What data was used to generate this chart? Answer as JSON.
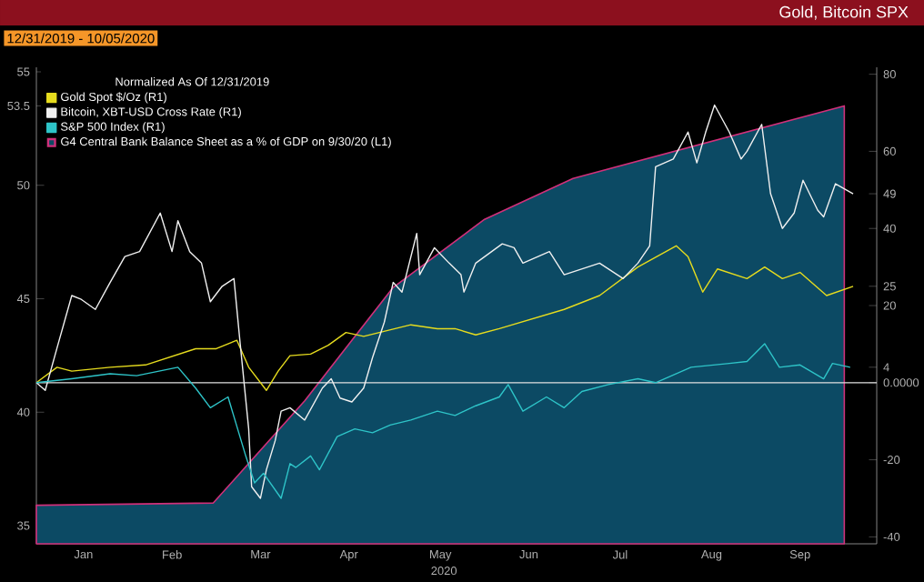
{
  "chart_data": {
    "type": "line",
    "title": "Gold, Bitcoin SPX",
    "subtitle": "12/31/2019 - 10/05/2020",
    "legend_title": "Normalized As Of 12/31/2019",
    "legend": "top left",
    "xlim": [
      "2019-12-31",
      "2020-10-11"
    ],
    "xticks": [
      {
        "value": "2020-01-16",
        "label": "Jan"
      },
      {
        "value": "2020-02-15",
        "label": "Feb"
      },
      {
        "value": "2020-03-16",
        "label": "Mar"
      },
      {
        "value": "2020-04-15",
        "label": "Apr"
      },
      {
        "value": "2020-05-16",
        "label": "May"
      },
      {
        "value": "2020-06-15",
        "label": "Jun"
      },
      {
        "value": "2020-07-16",
        "label": "Jul"
      },
      {
        "value": "2020-08-16",
        "label": "Aug"
      },
      {
        "value": "2020-09-15",
        "label": "Sep"
      }
    ],
    "ylim": [
      34.2,
      55.2
    ],
    "yticks": [
      35,
      40,
      45,
      50,
      53.5,
      55
    ],
    "y2lim": [
      -41.8,
      81.8
    ],
    "y2ticks": [
      -40,
      -20,
      {
        "value": 0,
        "label": "0.0000"
      },
      4,
      20,
      25,
      40,
      49,
      60,
      80
    ],
    "ref_lines": [
      {
        "axis": "y2",
        "value": 0,
        "color": "#e0e0e0"
      }
    ],
    "annotations": [
      "2020"
    ],
    "series": [
      {
        "name": "Gold Spot  $/Oz  (R1)",
        "axis": "y2",
        "color": "#e6dc1e",
        "x": [
          "2019-12-31",
          "2020-01-07",
          "2020-01-12",
          "2020-01-25",
          "2020-02-06",
          "2020-02-23",
          "2020-03-01",
          "2020-03-08",
          "2020-03-12",
          "2020-03-18",
          "2020-03-22",
          "2020-03-26",
          "2020-04-02",
          "2020-04-08",
          "2020-04-14",
          "2020-04-20",
          "2020-05-06",
          "2020-05-15",
          "2020-05-21",
          "2020-05-28",
          "2020-06-05",
          "2020-06-27",
          "2020-07-09",
          "2020-07-22",
          "2020-08-04",
          "2020-08-08",
          "2020-08-13",
          "2020-08-18",
          "2020-08-28",
          "2020-09-03",
          "2020-09-09",
          "2020-09-15",
          "2020-09-24",
          "2020-10-03"
        ],
        "values": [
          0,
          4,
          3,
          4,
          4.6,
          8.8,
          8.8,
          11,
          4,
          -2,
          3,
          7,
          7.4,
          9.7,
          13,
          12,
          15,
          14,
          14,
          12.4,
          14,
          19,
          22.6,
          30,
          35.5,
          32.7,
          23.5,
          29.5,
          27,
          30,
          27,
          28.6,
          22.6,
          25
        ]
      },
      {
        "name": "Bitcoin, XBT-USD Cross Rate  (R1)",
        "axis": "y2",
        "color": "#f0f0f0",
        "x": [
          "2019-12-31",
          "2020-01-03",
          "2020-01-07",
          "2020-01-12",
          "2020-01-15",
          "2020-01-20",
          "2020-01-25",
          "2020-01-30",
          "2020-02-04",
          "2020-02-11",
          "2020-02-15",
          "2020-02-17",
          "2020-02-21",
          "2020-02-25",
          "2020-02-28",
          "2020-03-03",
          "2020-03-07",
          "2020-03-09",
          "2020-03-12",
          "2020-03-13",
          "2020-03-16",
          "2020-03-18",
          "2020-03-21",
          "2020-03-23",
          "2020-03-26",
          "2020-03-31",
          "2020-04-06",
          "2020-04-09",
          "2020-04-12",
          "2020-04-16",
          "2020-04-20",
          "2020-04-23",
          "2020-04-27",
          "2020-04-30",
          "2020-05-03",
          "2020-05-08",
          "2020-05-09",
          "2020-05-14",
          "2020-05-19",
          "2020-05-23",
          "2020-05-24",
          "2020-05-28",
          "2020-06-06",
          "2020-06-10",
          "2020-06-13",
          "2020-06-22",
          "2020-06-27",
          "2020-07-09",
          "2020-07-17",
          "2020-07-22",
          "2020-07-26",
          "2020-07-28",
          "2020-08-03",
          "2020-08-08",
          "2020-08-11",
          "2020-08-14",
          "2020-08-17",
          "2020-08-22",
          "2020-08-26",
          "2020-08-28",
          "2020-09-02",
          "2020-09-05",
          "2020-09-09",
          "2020-09-13",
          "2020-09-16",
          "2020-09-21",
          "2020-09-23",
          "2020-09-27",
          "2020-10-03"
        ],
        "values": [
          0,
          -2,
          9,
          22.6,
          21.7,
          19,
          26,
          32.7,
          34,
          44,
          34,
          42,
          34,
          31,
          21,
          25,
          27,
          11,
          -12,
          -27,
          -30,
          -22.6,
          -15,
          -7.4,
          -6.5,
          -9.7,
          -1.4,
          1,
          -4,
          -5,
          -1.4,
          6.5,
          15.7,
          26,
          23.5,
          38.7,
          28,
          35,
          31,
          28,
          23.5,
          31,
          36,
          35,
          31,
          34,
          28,
          31,
          27,
          31,
          35.5,
          56,
          58,
          65,
          57,
          65,
          72,
          65,
          58,
          60,
          67,
          49,
          40,
          44,
          52.5,
          44.7,
          43,
          51.6,
          49
        ]
      },
      {
        "name": "S&P 500 Index (R1)",
        "axis": "y2",
        "color": "#2ec4c8",
        "x": [
          "2019-12-31",
          "2020-01-12",
          "2020-01-25",
          "2020-02-03",
          "2020-02-17",
          "2020-02-23",
          "2020-02-28",
          "2020-03-05",
          "2020-03-11",
          "2020-03-14",
          "2020-03-17",
          "2020-03-23",
          "2020-03-26",
          "2020-03-28",
          "2020-04-02",
          "2020-04-05",
          "2020-04-11",
          "2020-04-17",
          "2020-04-23",
          "2020-04-29",
          "2020-05-06",
          "2020-05-15",
          "2020-05-21",
          "2020-05-28",
          "2020-06-05",
          "2020-06-08",
          "2020-06-13",
          "2020-06-21",
          "2020-06-27",
          "2020-07-03",
          "2020-07-12",
          "2020-07-22",
          "2020-07-28",
          "2020-08-09",
          "2020-08-22",
          "2020-08-28",
          "2020-09-03",
          "2020-09-08",
          "2020-09-15",
          "2020-09-23",
          "2020-09-26",
          "2020-10-02"
        ],
        "values": [
          0,
          1,
          2.3,
          1.8,
          4,
          -1.4,
          -6.5,
          -3.7,
          -19,
          -26,
          -23.5,
          -30,
          -21,
          -22,
          -19,
          -22.6,
          -14,
          -12,
          -13,
          -11,
          -9.7,
          -7.4,
          -8.5,
          -6,
          -3.7,
          -0.5,
          -7.4,
          -3.7,
          -6.5,
          -2.3,
          -0.5,
          1,
          0,
          4,
          5,
          5.5,
          10.1,
          4,
          4.6,
          1,
          5,
          4
        ]
      },
      {
        "name": "G4 Central Bank Balance Sheet as a % of GDP  on 9/30/20 (L1)",
        "type": "area",
        "axis": "y",
        "color": "#d0307a",
        "x": [
          "2019-12-31",
          "2020-02-29",
          "2020-03-31",
          "2020-04-30",
          "2020-05-31",
          "2020-06-30",
          "2020-09-30"
        ],
        "values": [
          35.9,
          36.0,
          40.5,
          45.5,
          48.5,
          50.3,
          53.5
        ]
      }
    ]
  }
}
